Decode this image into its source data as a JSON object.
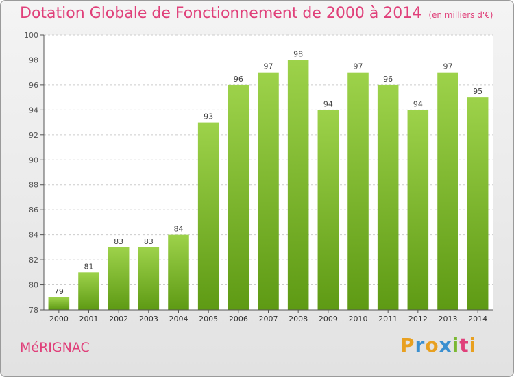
{
  "header": {
    "title": "Dotation Globale de Fonctionnement de 2000 à 2014",
    "subtitle": "(en milliers d'€)"
  },
  "footer": {
    "city": "MéRIGNAC",
    "brand": "Proxiti"
  },
  "colors": {
    "bar_light": "#9dd24a",
    "bar_dark": "#5e9a14",
    "title": "#e0407a"
  },
  "chart_data": {
    "type": "bar",
    "categories": [
      "2000",
      "2001",
      "2002",
      "2003",
      "2004",
      "2005",
      "2006",
      "2007",
      "2008",
      "2009",
      "2010",
      "2011",
      "2012",
      "2013",
      "2014"
    ],
    "values": [
      79,
      81,
      83,
      83,
      84,
      93,
      96,
      97,
      98,
      94,
      97,
      96,
      94,
      97,
      95
    ],
    "ylim": [
      78,
      100
    ],
    "yticks": [
      78,
      80,
      82,
      84,
      86,
      88,
      90,
      92,
      94,
      96,
      98,
      100
    ],
    "grid": true,
    "legend": "none"
  }
}
